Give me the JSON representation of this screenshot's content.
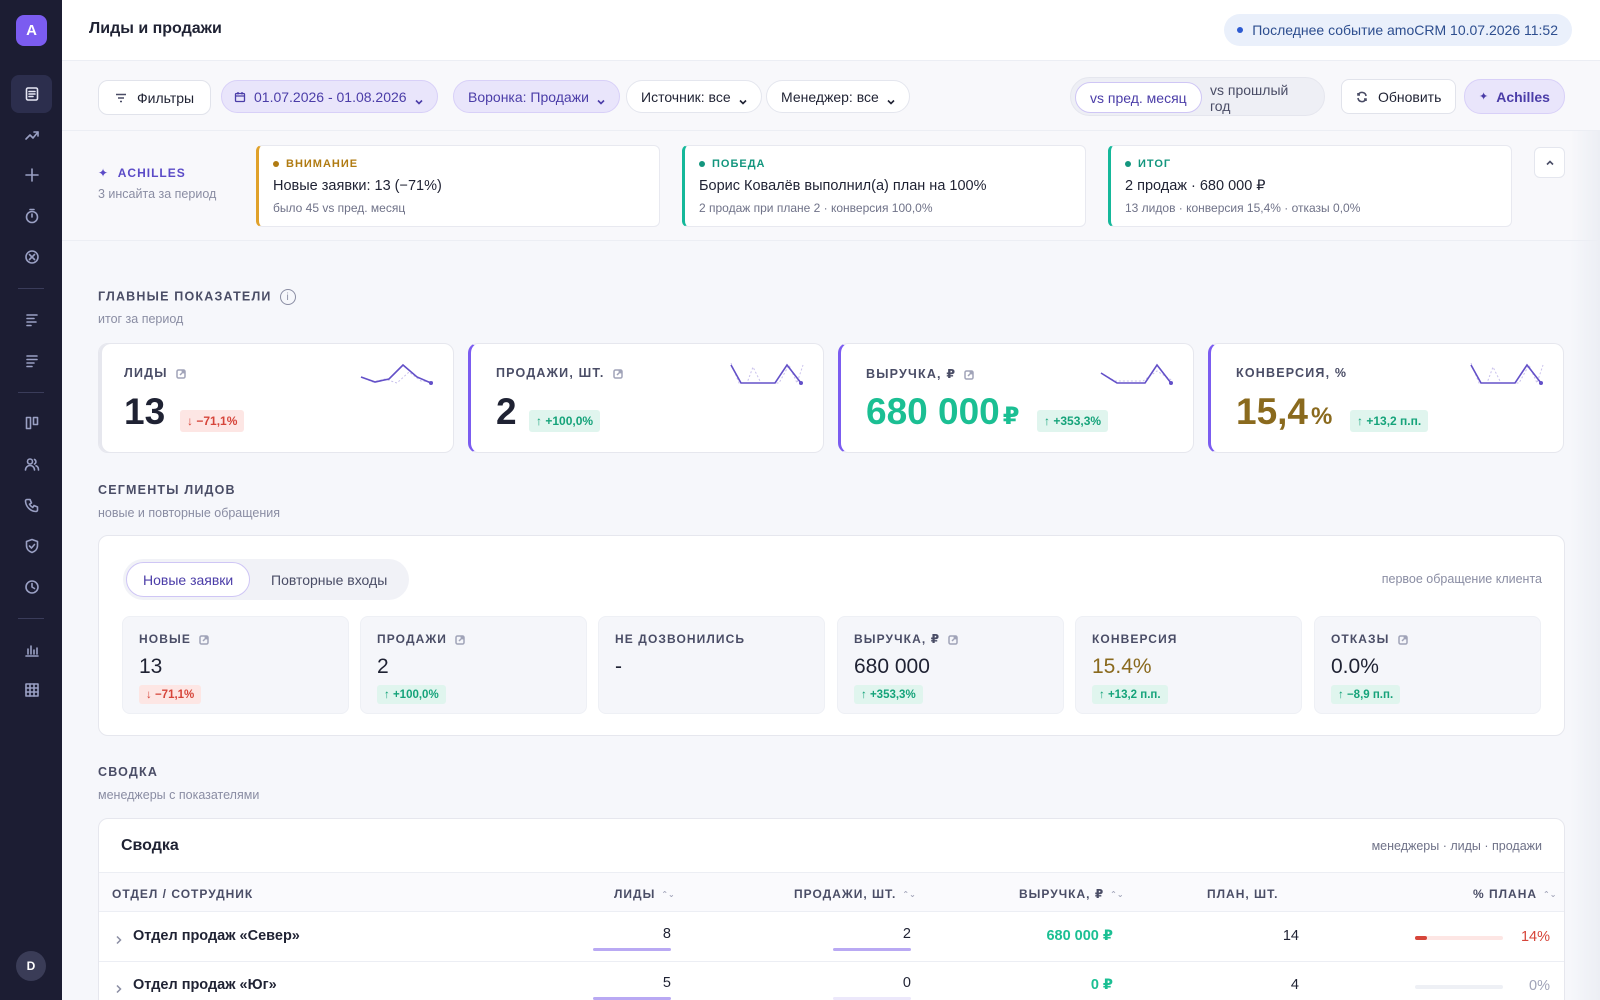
{
  "app": {
    "logo": "A",
    "user_initial": "D"
  },
  "sidebar": {
    "items": [
      {
        "icon": "document-icon",
        "active": true
      },
      {
        "icon": "trend-icon"
      },
      {
        "icon": "plus-icon"
      },
      {
        "icon": "timer-icon"
      },
      {
        "icon": "close-circle-icon"
      },
      {
        "icon": "bars-left-icon"
      },
      {
        "icon": "bars-left-alt-icon"
      },
      {
        "icon": "kanban-icon"
      },
      {
        "icon": "users-icon"
      },
      {
        "icon": "phone-icon"
      },
      {
        "icon": "shield-icon"
      },
      {
        "icon": "clock-icon"
      },
      {
        "icon": "bar-chart-icon"
      },
      {
        "icon": "grid-icon"
      }
    ]
  },
  "header": {
    "title": "Лиды и продажи",
    "last_event": "Последнее событие amoCRM 10.07.2026 11:52"
  },
  "filters": {
    "filters_label": "Фильтры",
    "date_range": "01.07.2026 - 01.08.2026",
    "funnel": "Воронка: Продажи",
    "source": "Источник: все",
    "manager": "Менеджер: все",
    "compare_options": [
      "vs пред. месяц",
      "vs прошлый год"
    ],
    "compare_selected": 0,
    "refresh_label": "Обновить",
    "achilles_label": "Achilles"
  },
  "insights": {
    "brand": "ACHILLES",
    "subtitle": "3 инсайта за период",
    "cards": [
      {
        "tag": "ВНИМАНИЕ",
        "color": "#e0a12a",
        "title": "Новые заявки: 13 (−71%)",
        "sub": "было 45 vs пред. месяц"
      },
      {
        "tag": "ПОБЕДА",
        "color": "#15b89a",
        "title": "Борис Ковалёв выполнил(а) план на 100%",
        "sub": "2 продаж при плане 2 · конверсия 100,0%"
      },
      {
        "tag": "ИТОГ",
        "color": "#15b89a",
        "title": "2 продаж · 680 000 ₽",
        "sub": "13 лидов · конверсия 15,4% · отказы 0,0%"
      }
    ]
  },
  "kpi_section": {
    "title": "ГЛАВНЫЕ ПОКАЗАТЕЛИ",
    "subtitle": "итог за период",
    "cards": [
      {
        "label": "ЛИДЫ",
        "value": "13",
        "unit": "",
        "delta": "−71,1%",
        "trend": "down",
        "value_color": "#1f2233"
      },
      {
        "label": "ПРОДАЖИ, ШТ.",
        "value": "2",
        "unit": "",
        "delta": "+100,0%",
        "trend": "up",
        "value_color": "#1f2233"
      },
      {
        "label": "ВЫРУЧКА, ₽",
        "value": "680 000",
        "unit": "₽",
        "delta": "+353,3%",
        "trend": "up",
        "value_color": "#1bbf93"
      },
      {
        "label": "КОНВЕРСИЯ, %",
        "value": "15,4",
        "unit": "%",
        "delta": "+13,2 п.п.",
        "trend": "up",
        "value_color": "#8a6a1e"
      }
    ]
  },
  "segments": {
    "title": "СЕГМЕНТЫ ЛИДОВ",
    "subtitle": "новые и повторные обращения",
    "tabs": [
      "Новые заявки",
      "Повторные входы"
    ],
    "note": "первое обращение клиента",
    "metrics": [
      {
        "label": "НОВЫЕ",
        "value": "13",
        "delta": "−71,1%",
        "trend": "down",
        "color": "#1f2233"
      },
      {
        "label": "ПРОДАЖИ",
        "value": "2",
        "delta": "+100,0%",
        "trend": "up",
        "color": "#1f2233"
      },
      {
        "label": "НЕ ДОЗВОНИЛИСЬ",
        "value": "-",
        "delta": "",
        "trend": "",
        "color": "#1f2233"
      },
      {
        "label": "ВЫРУЧКА, ₽",
        "value": "680 000",
        "delta": "+353,3%",
        "trend": "up",
        "color": "#1f2233"
      },
      {
        "label": "КОНВЕРСИЯ",
        "value": "15.4%",
        "delta": "+13,2 п.п.",
        "trend": "up",
        "color": "#8a6a1e"
      },
      {
        "label": "ОТКАЗЫ",
        "value": "0.0%",
        "delta": "−8,9 п.п.",
        "trend": "up",
        "color": "#1f2233"
      }
    ]
  },
  "summary": {
    "title": "СВОДКА",
    "subtitle": "менеджеры с показателями",
    "card_title": "Сводка",
    "card_note": "менеджеры · лиды · продажи",
    "columns": [
      "ОТДЕЛ / СОТРУДНИК",
      "ЛИДЫ",
      "ПРОДАЖИ, ШТ.",
      "ВЫРУЧКА, ₽",
      "ПЛАН, ШТ.",
      "% ПЛАНА"
    ],
    "rows": [
      {
        "name": "Отдел продаж «Север»",
        "leads": "8",
        "sales": "2",
        "revenue": "680 000 ₽",
        "plan": "14",
        "plan_pct": "14%",
        "plan_fraction": 0.14
      },
      {
        "name": "Отдел продаж «Юг»",
        "leads": "5",
        "sales": "0",
        "revenue": "0 ₽",
        "plan": "4",
        "plan_pct": "0%",
        "plan_fraction": 0
      }
    ]
  }
}
